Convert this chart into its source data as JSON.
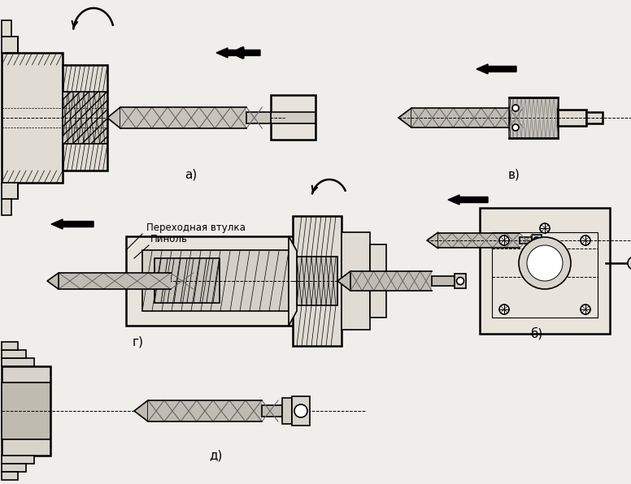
{
  "bg_color": "#f0eeea",
  "line_color": "#000000",
  "hatch_color": "#000000",
  "fill_light": "#d8d4cc",
  "fill_medium": "#c0bbb0",
  "fill_dark": "#a8a49c",
  "fill_crosshatch": "#b0aca4",
  "label_a": "а)",
  "label_b": "б)",
  "label_v": "в)",
  "label_g": "г)",
  "label_d": "д)",
  "label_vtulka": "Переходная втулка",
  "label_pinol": "Пиноль",
  "lw": 1.2,
  "lw_thick": 1.8
}
